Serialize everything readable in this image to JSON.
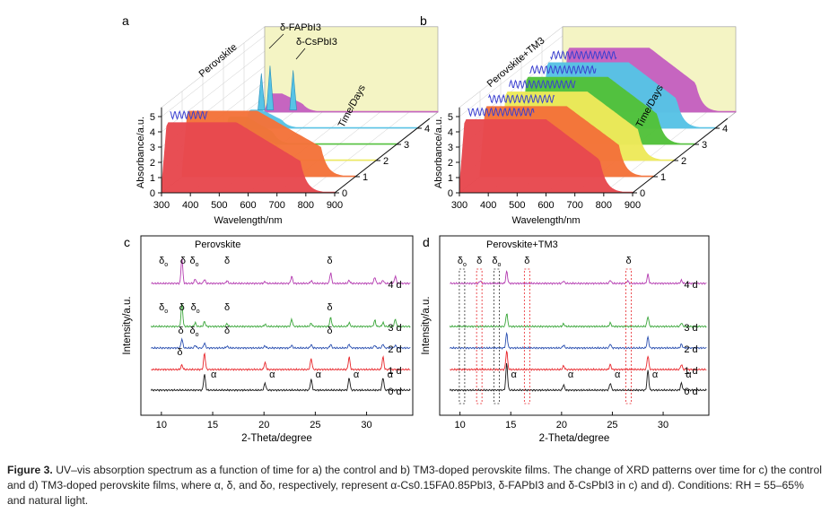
{
  "panels": {
    "a": {
      "letter": "a",
      "sample_label": "Perovskite",
      "ylabel": "Absorbance/a.u.",
      "xlabel": "Wavelength/nm",
      "zlabel": "Time/Days",
      "x_ticks": [
        "300",
        "400",
        "500",
        "600",
        "700",
        "800",
        "900"
      ],
      "y_ticks": [
        "0",
        "1",
        "2",
        "3",
        "4",
        "5"
      ],
      "z_ticks": [
        "0",
        "1",
        "2",
        "3",
        "4"
      ],
      "annotations": [
        "δ-FAPbI3",
        "δ-CsPbI3"
      ]
    },
    "b": {
      "letter": "b",
      "sample_label": "Perovskite+TM3",
      "ylabel": "Absorbance/a.u.",
      "xlabel": "Wavelength/nm",
      "zlabel": "Time/Days",
      "x_ticks": [
        "300",
        "400",
        "500",
        "600",
        "700",
        "800",
        "900"
      ],
      "y_ticks": [
        "0",
        "1",
        "2",
        "3",
        "4",
        "5"
      ],
      "z_ticks": [
        "0",
        "1",
        "2",
        "3",
        "4"
      ]
    },
    "c": {
      "letter": "c",
      "title": "Perovskite",
      "ylabel": "Intensity/a.u.",
      "xlabel": "2-Theta/degree",
      "x_ticks": [
        "10",
        "15",
        "20",
        "25",
        "30"
      ],
      "day_labels": [
        "0 d",
        "1 d",
        "2 d",
        "3 d",
        "4 d"
      ],
      "markers": [
        {
          "t": "α",
          "day": 0,
          "x": 14.4
        },
        {
          "t": "α",
          "day": 0,
          "x": 20.1
        },
        {
          "t": "α",
          "day": 0,
          "x": 24.6
        },
        {
          "t": "α",
          "day": 0,
          "x": 28.3
        },
        {
          "t": "α",
          "day": 0,
          "x": 31.6
        },
        {
          "t": "δ",
          "day": 1,
          "x": 11.8
        },
        {
          "t": "δ",
          "day": 2,
          "x": 11.9
        },
        {
          "t": "δo",
          "day": 2,
          "x": 13.2
        },
        {
          "t": "δ",
          "day": 2,
          "x": 16.4
        },
        {
          "t": "δ",
          "day": 2,
          "x": 26.4
        },
        {
          "t": "δo",
          "day": 3,
          "x": 10.2
        },
        {
          "t": "δ",
          "day": 3,
          "x": 12.0
        },
        {
          "t": "δo",
          "day": 3,
          "x": 13.3
        },
        {
          "t": "δ",
          "day": 3,
          "x": 16.4
        },
        {
          "t": "δ",
          "day": 3,
          "x": 26.4
        },
        {
          "t": "δo",
          "day": 4,
          "x": 10.2
        },
        {
          "t": "δ",
          "day": 4,
          "x": 12.1
        },
        {
          "t": "δo",
          "day": 4,
          "x": 13.2
        },
        {
          "t": "δ",
          "day": 4,
          "x": 16.4
        },
        {
          "t": "δ",
          "day": 4,
          "x": 26.4
        }
      ]
    },
    "d": {
      "letter": "d",
      "title": "Perovskite+TM3",
      "ylabel": "Intensity/a.u.",
      "xlabel": "2-Theta/degree",
      "x_ticks": [
        "10",
        "15",
        "20",
        "25",
        "30"
      ],
      "day_labels": [
        "0 d",
        "1 d",
        "2 d",
        "3 d",
        "4 d"
      ],
      "markers": [
        {
          "t": "α",
          "day": 0,
          "x": 14.6
        },
        {
          "t": "α",
          "day": 0,
          "x": 20.2
        },
        {
          "t": "α",
          "day": 0,
          "x": 24.8
        },
        {
          "t": "α",
          "day": 0,
          "x": 28.5
        },
        {
          "t": "α",
          "day": 0,
          "x": 31.8
        },
        {
          "t": "δo",
          "day": 4,
          "x": 10.2
        },
        {
          "t": "δ",
          "day": 4,
          "x": 11.9
        },
        {
          "t": "δo",
          "day": 4,
          "x": 13.6
        },
        {
          "t": "δ",
          "day": 4,
          "x": 16.6
        },
        {
          "t": "δ",
          "day": 4,
          "x": 26.6
        }
      ]
    }
  },
  "colors": {
    "day0": "#e8494f",
    "day1": "#f4733a",
    "day2": "#eeea5a",
    "day3": "#52c23a",
    "day4": "#57c3e6",
    "day5": "#c561c0",
    "xrd0": "#1a1a1a",
    "xrd1": "#e8262b",
    "xrd2": "#2a4fb0",
    "xrd3": "#3aa63a",
    "xrd4": "#b43bb0",
    "backwall": "#f4f4c4"
  },
  "caption": {
    "label": "Figure 3.",
    "text": "UV–vis absorption spectrum as a function of time for a) the control and b) TM3-doped perovskite films. The change of XRD patterns over time for c) the control and d) TM3-doped perovskite films, where α, δ, and δo, respectively, represent α-Cs0.15FA0.85PbI3, δ-FAPbI3 and δ-CsPbI3 in c) and d). Conditions: RH = 55–65% and natural light."
  }
}
